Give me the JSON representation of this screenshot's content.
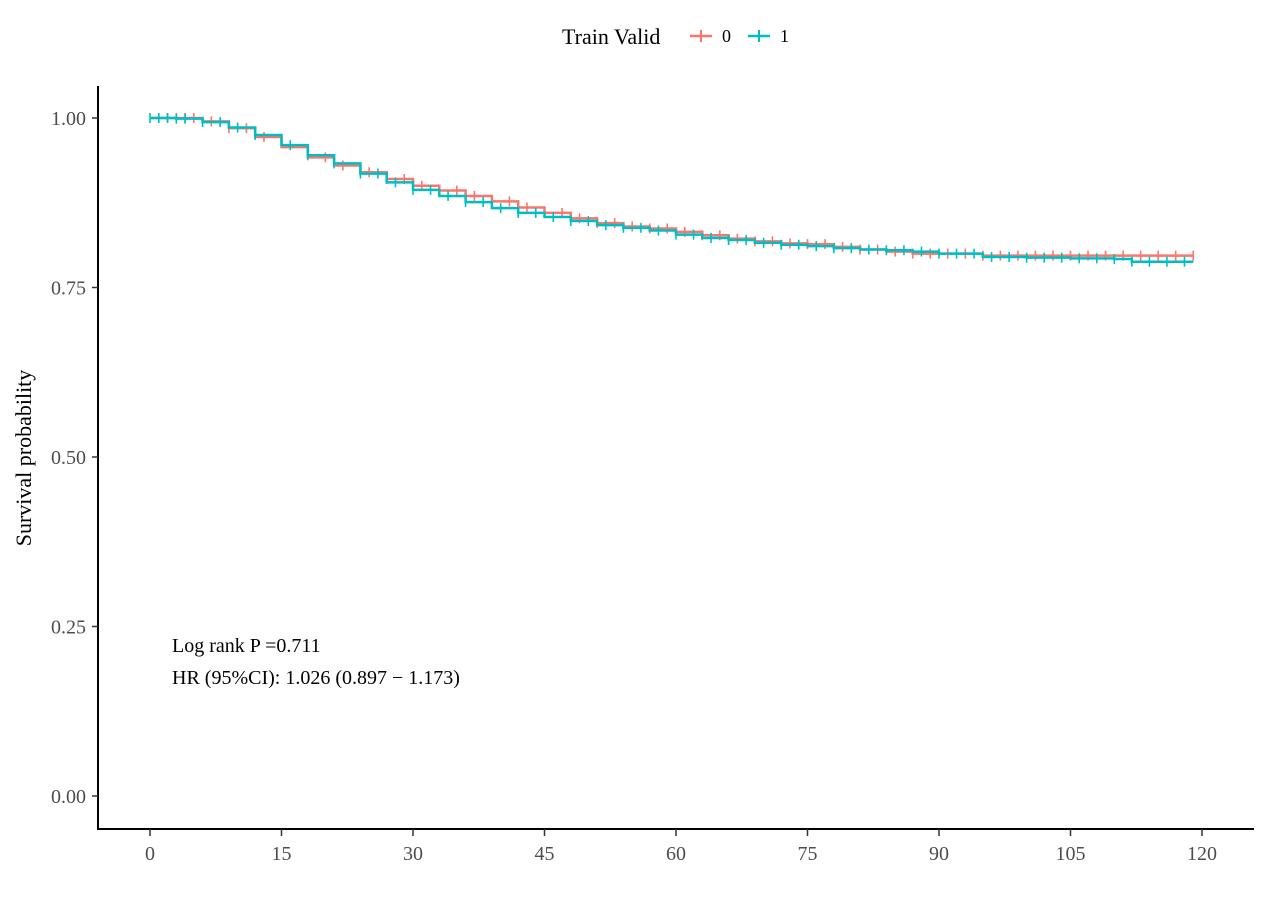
{
  "chart_data": {
    "type": "line",
    "subtype": "kaplan-meier",
    "title": "",
    "xlabel": "",
    "ylabel": "Survival probability",
    "xlim": [
      0,
      120
    ],
    "ylim": [
      0,
      1
    ],
    "x_ticks": [
      0,
      15,
      30,
      45,
      60,
      75,
      90,
      105,
      120
    ],
    "x_tick_labels": [
      "0",
      "15",
      "30",
      "45",
      "60",
      "75",
      "90",
      "105",
      "120"
    ],
    "y_ticks": [
      0,
      0.25,
      0.5,
      0.75,
      1.0
    ],
    "y_tick_labels": [
      "0.00",
      "0.25",
      "0.50",
      "0.75",
      "1.00"
    ],
    "grid": false,
    "legend": {
      "title": "Train Valid",
      "placement": "top-center",
      "entries": [
        "0",
        "1"
      ]
    },
    "annotations": [
      "Log rank P =0.711",
      "HR (95%CI): 1.026 (0.897 − 1.173)"
    ],
    "series": [
      {
        "name": "0",
        "color": "#F8766D",
        "x": [
          0,
          3,
          6,
          9,
          12,
          15,
          18,
          21,
          24,
          27,
          30,
          33,
          36,
          39,
          42,
          45,
          48,
          51,
          54,
          57,
          60,
          63,
          66,
          69,
          72,
          75,
          78,
          81,
          84,
          87,
          90,
          95,
          100,
          105,
          110,
          115,
          119
        ],
        "y": [
          1.0,
          1.0,
          0.995,
          0.985,
          0.972,
          0.957,
          0.942,
          0.93,
          0.92,
          0.91,
          0.9,
          0.893,
          0.885,
          0.877,
          0.868,
          0.86,
          0.852,
          0.845,
          0.84,
          0.837,
          0.832,
          0.827,
          0.822,
          0.818,
          0.815,
          0.814,
          0.81,
          0.806,
          0.803,
          0.8,
          0.8,
          0.797,
          0.797,
          0.797,
          0.797,
          0.797,
          0.797
        ],
        "censor_x": [
          1,
          2,
          3,
          4,
          5,
          7,
          9,
          11,
          13,
          20,
          22,
          25,
          27,
          29,
          31,
          33,
          35,
          37,
          39,
          41,
          43,
          45,
          47,
          49,
          51,
          53,
          55,
          57,
          59,
          61,
          63,
          65,
          67,
          69,
          71,
          73,
          75,
          77,
          79,
          81,
          83,
          85,
          87,
          89,
          91,
          93,
          95,
          97,
          99,
          101,
          103,
          105,
          107,
          109,
          111,
          113,
          115,
          117,
          119
        ]
      },
      {
        "name": "1",
        "color": "#00BFC4",
        "x": [
          0,
          3,
          6,
          9,
          12,
          15,
          18,
          21,
          24,
          27,
          30,
          33,
          36,
          39,
          42,
          45,
          48,
          51,
          54,
          57,
          60,
          63,
          66,
          69,
          72,
          75,
          78,
          81,
          84,
          87,
          90,
          95,
          100,
          105,
          110,
          112,
          115,
          119
        ],
        "y": [
          1.0,
          0.999,
          0.994,
          0.986,
          0.975,
          0.96,
          0.945,
          0.933,
          0.918,
          0.905,
          0.894,
          0.885,
          0.876,
          0.867,
          0.86,
          0.854,
          0.848,
          0.842,
          0.838,
          0.834,
          0.828,
          0.823,
          0.82,
          0.816,
          0.813,
          0.811,
          0.808,
          0.806,
          0.805,
          0.803,
          0.8,
          0.795,
          0.794,
          0.793,
          0.792,
          0.788,
          0.788,
          0.788
        ],
        "censor_x": [
          0,
          1,
          2,
          3,
          4,
          6,
          8,
          10,
          12,
          16,
          18,
          21,
          24,
          26,
          28,
          30,
          32,
          34,
          36,
          38,
          40,
          42,
          44,
          46,
          48,
          50,
          52,
          54,
          56,
          58,
          60,
          62,
          64,
          66,
          68,
          70,
          72,
          74,
          76,
          78,
          80,
          82,
          84,
          86,
          88,
          90,
          92,
          94,
          96,
          98,
          100,
          102,
          104,
          106,
          108,
          110,
          112,
          114,
          116,
          118
        ]
      }
    ]
  }
}
